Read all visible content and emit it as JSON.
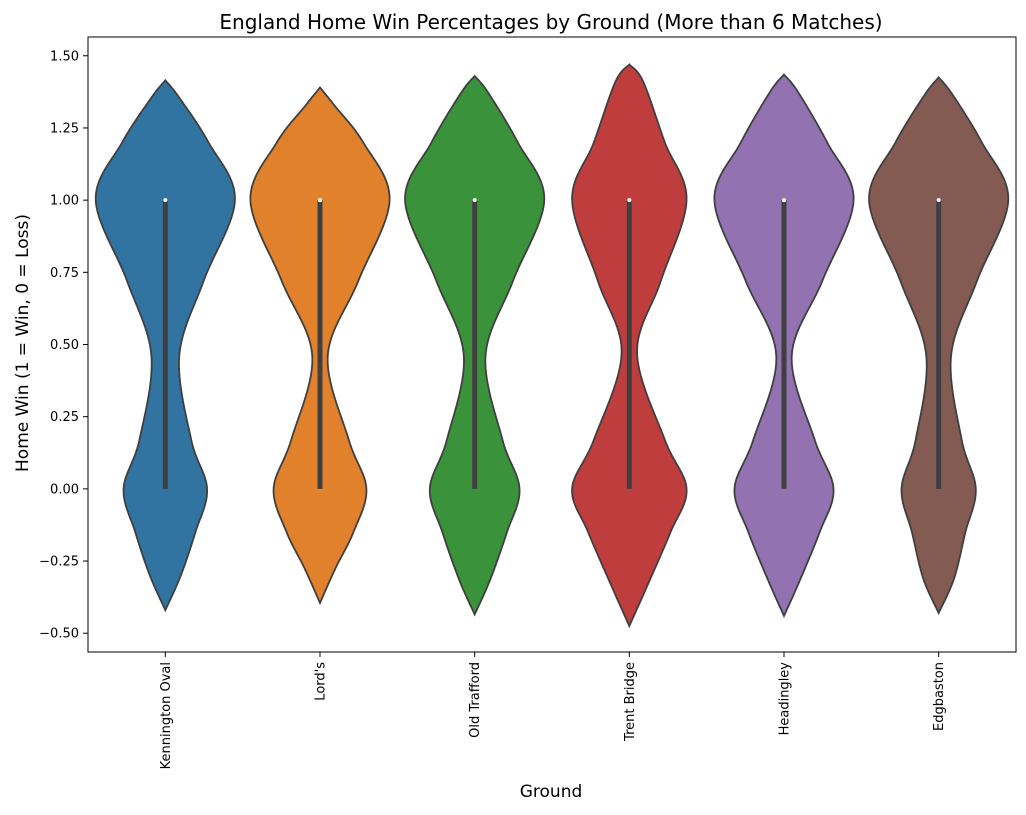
{
  "chart_data": {
    "type": "violin",
    "title": "England Home Win Percentages by Ground (More than 6 Matches)",
    "xlabel": "Ground",
    "ylabel": "Home Win (1 = Win, 0 = Loss)",
    "categories": [
      "Kennington Oval",
      "Lord's",
      "Old Trafford",
      "Trent Bridge",
      "Headingley",
      "Edgbaston"
    ],
    "ylim": [
      -0.565,
      1.565
    ],
    "yticks": [
      -0.5,
      -0.25,
      0,
      0.25,
      0.5,
      0.75,
      1,
      1.25,
      1.5
    ],
    "ytick_labels": [
      "−0.50",
      "−0.25",
      "0.00",
      "0.25",
      "0.50",
      "0.75",
      "1.00",
      "1.25",
      "1.50"
    ],
    "grid": false,
    "legend": "none",
    "violins": [
      {
        "category": "Kennington Oval",
        "color": "#3274a1",
        "min": -0.42,
        "max": 1.415,
        "width_at_0": 0.27,
        "width_at_1": 0.45,
        "width_at_mid": 0.09,
        "mid": 0.46,
        "whisker": [
          0,
          1
        ],
        "median": 1
      },
      {
        "category": "Lord's",
        "color": "#e1812c",
        "min": -0.395,
        "max": 1.39,
        "width_at_0": 0.3,
        "width_at_1": 0.45,
        "width_at_mid": 0.05,
        "mid": 0.46,
        "whisker": [
          0,
          1
        ],
        "median": 1
      },
      {
        "category": "Old Trafford",
        "color": "#3a923a",
        "min": -0.435,
        "max": 1.43,
        "width_at_0": 0.29,
        "width_at_1": 0.45,
        "width_at_mid": 0.07,
        "mid": 0.46,
        "whisker": [
          0,
          1
        ],
        "median": 1
      },
      {
        "category": "Trent Bridge",
        "color": "#c03d3e",
        "min": -0.475,
        "max": 1.47,
        "width_at_0": 0.37,
        "width_at_1": 0.37,
        "width_at_mid": 0.05,
        "mid": 0.47,
        "whisker": [
          0,
          1
        ],
        "median": 1
      },
      {
        "category": "Headingley",
        "color": "#9372b2",
        "min": -0.44,
        "max": 1.435,
        "width_at_0": 0.32,
        "width_at_1": 0.45,
        "width_at_mid": 0.05,
        "mid": 0.46,
        "whisker": [
          0,
          1
        ],
        "median": 1
      },
      {
        "category": "Edgbaston",
        "color": "#845b53",
        "min": -0.43,
        "max": 1.425,
        "width_at_0": 0.24,
        "width_at_1": 0.45,
        "width_at_mid": 0.08,
        "mid": 0.46,
        "whisker": [
          0,
          1
        ],
        "median": 1
      }
    ]
  }
}
